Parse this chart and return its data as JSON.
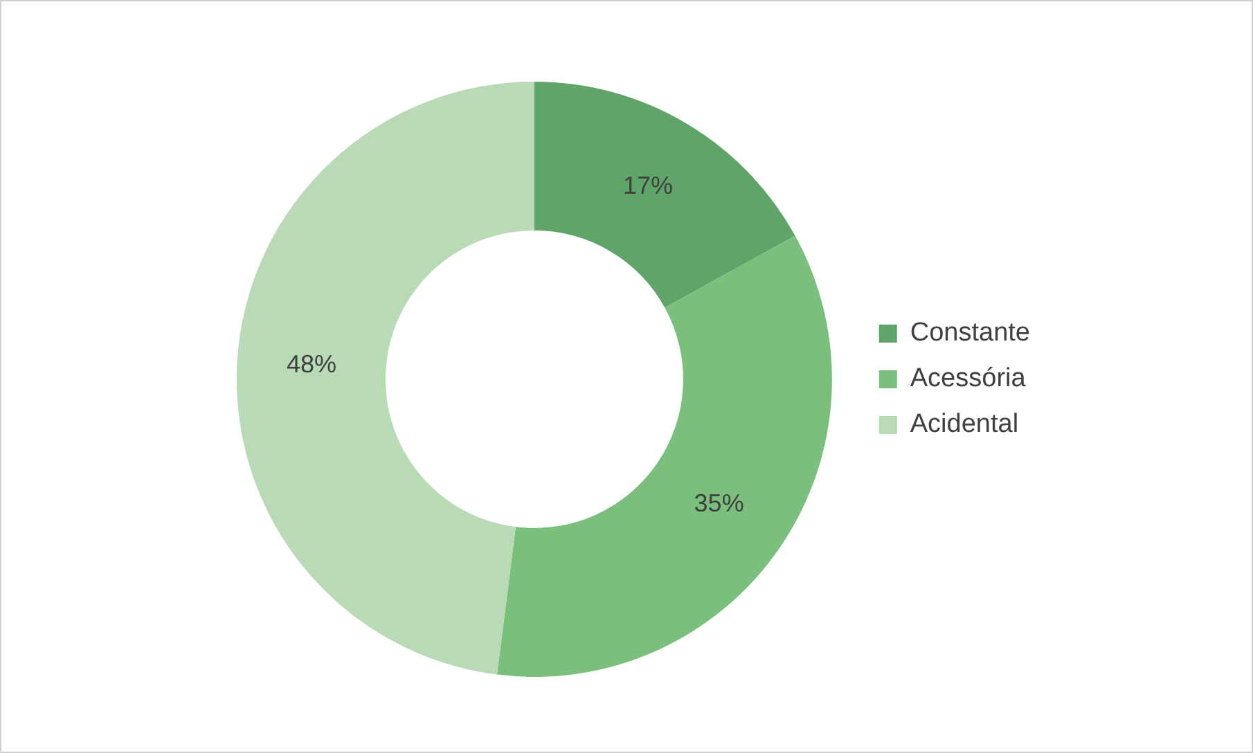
{
  "chart_data": {
    "type": "donut",
    "categories": [
      "Constante",
      "Acessória",
      "Acidental"
    ],
    "values": [
      17,
      35,
      48
    ],
    "value_labels": [
      "17%",
      "35%",
      "48%"
    ],
    "colors": [
      "#5fa469",
      "#7abf7c",
      "#b8dab5"
    ],
    "legend": "right"
  }
}
